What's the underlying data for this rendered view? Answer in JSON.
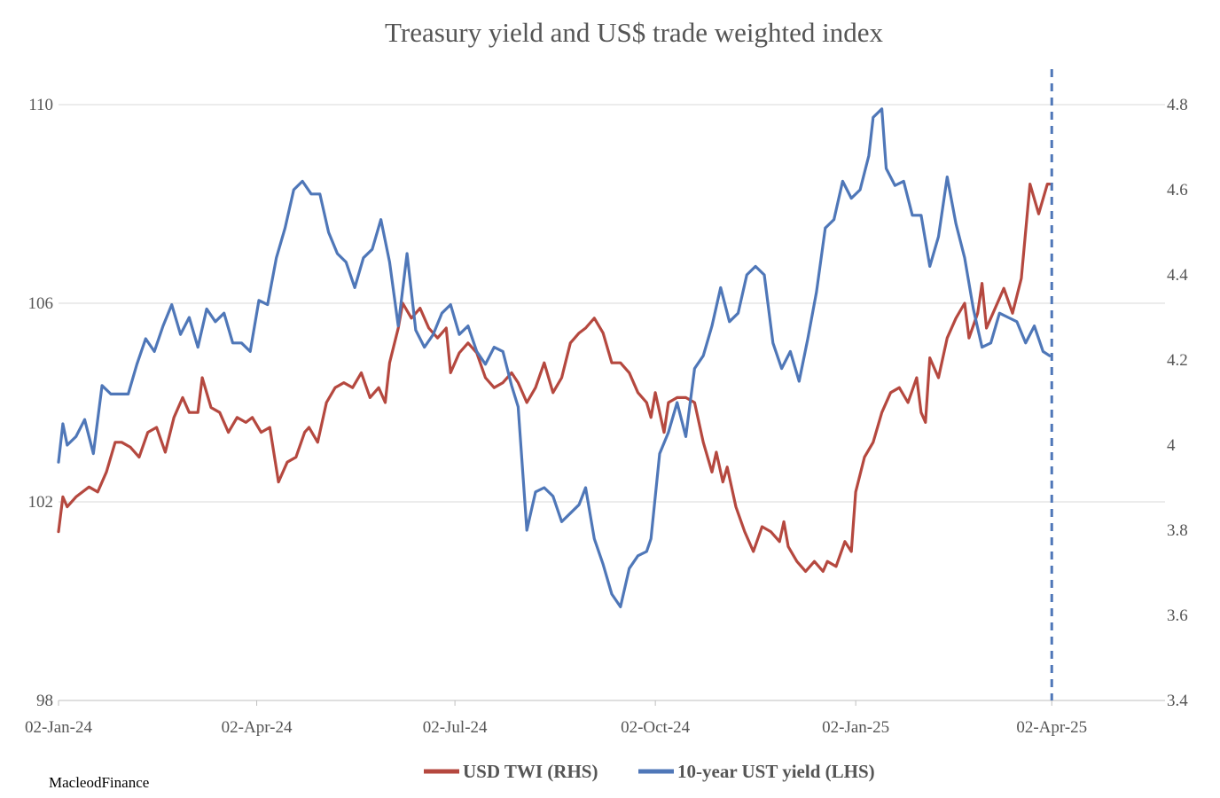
{
  "chart_data": {
    "type": "line",
    "title": "Treasury yield and US$ trade weighted index",
    "x_tick_labels": [
      "02-Jan-24",
      "02-Apr-24",
      "02-Jul-24",
      "02-Oct-24",
      "02-Jan-25",
      "02-Apr-25"
    ],
    "x_range": [
      "2024-01-02",
      "2025-05-24"
    ],
    "left_axis": {
      "ticks": [
        98,
        102,
        106,
        110
      ],
      "range": [
        98,
        110
      ]
    },
    "right_axis": {
      "ticks": [
        3.4,
        3.6,
        3.8,
        4,
        4.2,
        4.4,
        4.6,
        4.8
      ],
      "range": [
        3.4,
        4.8
      ]
    },
    "grid": true,
    "legend_position": "bottom-center",
    "vertical_marker": {
      "date": "2025-04-02",
      "style": "dashed",
      "color": "#4f77b8"
    },
    "series": [
      {
        "name": "USD TWI (RHS)",
        "color": "#b5483f",
        "points": [
          [
            "2024-01-02",
            101.4
          ],
          [
            "2024-01-04",
            102.1
          ],
          [
            "2024-01-06",
            101.9
          ],
          [
            "2024-01-10",
            102.1
          ],
          [
            "2024-01-16",
            102.3
          ],
          [
            "2024-01-20",
            102.2
          ],
          [
            "2024-01-24",
            102.6
          ],
          [
            "2024-01-28",
            103.2
          ],
          [
            "2024-01-31",
            103.2
          ],
          [
            "2024-02-04",
            103.1
          ],
          [
            "2024-02-08",
            102.9
          ],
          [
            "2024-02-12",
            103.4
          ],
          [
            "2024-02-16",
            103.5
          ],
          [
            "2024-02-20",
            103.0
          ],
          [
            "2024-02-24",
            103.7
          ],
          [
            "2024-02-28",
            104.1
          ],
          [
            "2024-03-02",
            103.8
          ],
          [
            "2024-03-06",
            103.8
          ],
          [
            "2024-03-08",
            104.5
          ],
          [
            "2024-03-12",
            103.9
          ],
          [
            "2024-03-16",
            103.8
          ],
          [
            "2024-03-20",
            103.4
          ],
          [
            "2024-03-24",
            103.7
          ],
          [
            "2024-03-28",
            103.6
          ],
          [
            "2024-03-31",
            103.7
          ],
          [
            "2024-04-04",
            103.4
          ],
          [
            "2024-04-08",
            103.5
          ],
          [
            "2024-04-12",
            102.4
          ],
          [
            "2024-04-16",
            102.8
          ],
          [
            "2024-04-20",
            102.9
          ],
          [
            "2024-04-24",
            103.4
          ],
          [
            "2024-04-26",
            103.5
          ],
          [
            "2024-04-30",
            103.2
          ],
          [
            "2024-05-04",
            104.0
          ],
          [
            "2024-05-08",
            104.3
          ],
          [
            "2024-05-12",
            104.4
          ],
          [
            "2024-05-16",
            104.3
          ],
          [
            "2024-05-20",
            104.6
          ],
          [
            "2024-05-24",
            104.1
          ],
          [
            "2024-05-28",
            104.3
          ],
          [
            "2024-05-31",
            104.0
          ],
          [
            "2024-06-02",
            104.8
          ],
          [
            "2024-06-06",
            105.5
          ],
          [
            "2024-06-08",
            106.0
          ],
          [
            "2024-06-12",
            105.7
          ],
          [
            "2024-06-16",
            105.9
          ],
          [
            "2024-06-20",
            105.5
          ],
          [
            "2024-06-24",
            105.3
          ],
          [
            "2024-06-28",
            105.5
          ],
          [
            "2024-06-30",
            104.6
          ],
          [
            "2024-07-04",
            105.0
          ],
          [
            "2024-07-08",
            105.2
          ],
          [
            "2024-07-12",
            105.0
          ],
          [
            "2024-07-16",
            104.5
          ],
          [
            "2024-07-20",
            104.3
          ],
          [
            "2024-07-24",
            104.4
          ],
          [
            "2024-07-28",
            104.6
          ],
          [
            "2024-07-31",
            104.4
          ],
          [
            "2024-08-04",
            104.0
          ],
          [
            "2024-08-08",
            104.3
          ],
          [
            "2024-08-12",
            104.8
          ],
          [
            "2024-08-16",
            104.2
          ],
          [
            "2024-08-20",
            104.5
          ],
          [
            "2024-08-24",
            105.2
          ],
          [
            "2024-08-28",
            105.4
          ],
          [
            "2024-08-31",
            105.5
          ],
          [
            "2024-09-04",
            105.7
          ],
          [
            "2024-09-08",
            105.4
          ],
          [
            "2024-09-12",
            104.8
          ],
          [
            "2024-09-16",
            104.8
          ],
          [
            "2024-09-20",
            104.6
          ],
          [
            "2024-09-24",
            104.2
          ],
          [
            "2024-09-28",
            104.0
          ],
          [
            "2024-09-30",
            103.7
          ],
          [
            "2024-10-02",
            104.2
          ],
          [
            "2024-10-06",
            103.4
          ],
          [
            "2024-10-08",
            104.0
          ],
          [
            "2024-10-12",
            104.1
          ],
          [
            "2024-10-16",
            104.1
          ],
          [
            "2024-10-20",
            104.0
          ],
          [
            "2024-10-24",
            103.2
          ],
          [
            "2024-10-28",
            102.6
          ],
          [
            "2024-10-30",
            103.0
          ],
          [
            "2024-11-02",
            102.4
          ],
          [
            "2024-11-04",
            102.7
          ],
          [
            "2024-11-08",
            101.9
          ],
          [
            "2024-11-12",
            101.4
          ],
          [
            "2024-11-16",
            101.0
          ],
          [
            "2024-11-20",
            101.5
          ],
          [
            "2024-11-24",
            101.4
          ],
          [
            "2024-11-28",
            101.2
          ],
          [
            "2024-11-30",
            101.6
          ],
          [
            "2024-12-02",
            101.1
          ],
          [
            "2024-12-06",
            100.8
          ],
          [
            "2024-12-10",
            100.6
          ],
          [
            "2024-12-14",
            100.8
          ],
          [
            "2024-12-18",
            100.6
          ],
          [
            "2024-12-20",
            100.8
          ],
          [
            "2024-12-24",
            100.7
          ],
          [
            "2024-12-28",
            101.2
          ],
          [
            "2024-12-31",
            101.0
          ],
          [
            "2025-01-02",
            102.2
          ],
          [
            "2025-01-06",
            102.9
          ],
          [
            "2025-01-10",
            103.2
          ],
          [
            "2025-01-14",
            103.8
          ],
          [
            "2025-01-18",
            104.2
          ],
          [
            "2025-01-22",
            104.3
          ],
          [
            "2025-01-26",
            104.0
          ],
          [
            "2025-01-30",
            104.5
          ],
          [
            "2025-02-01",
            103.8
          ],
          [
            "2025-02-03",
            103.6
          ],
          [
            "2025-02-05",
            104.9
          ],
          [
            "2025-02-09",
            104.5
          ],
          [
            "2025-02-13",
            105.3
          ],
          [
            "2025-02-17",
            105.7
          ],
          [
            "2025-02-21",
            106.0
          ],
          [
            "2025-02-23",
            105.3
          ],
          [
            "2025-02-27",
            105.8
          ],
          [
            "2025-03-01",
            106.4
          ],
          [
            "2025-03-03",
            105.5
          ],
          [
            "2025-03-07",
            105.9
          ],
          [
            "2025-03-11",
            106.3
          ],
          [
            "2025-03-15",
            105.8
          ],
          [
            "2025-03-19",
            106.5
          ],
          [
            "2025-03-23",
            108.4
          ],
          [
            "2025-03-27",
            107.8
          ],
          [
            "2025-03-31",
            108.4
          ],
          [
            "2025-04-01",
            108.4
          ]
        ]
      },
      {
        "name": "10-year UST yield (LHS)",
        "color": "#4f77b8",
        "points": [
          [
            "2024-01-02",
            3.96
          ],
          [
            "2024-01-04",
            4.05
          ],
          [
            "2024-01-06",
            4.0
          ],
          [
            "2024-01-10",
            4.02
          ],
          [
            "2024-01-14",
            4.06
          ],
          [
            "2024-01-18",
            3.98
          ],
          [
            "2024-01-22",
            4.14
          ],
          [
            "2024-01-26",
            4.12
          ],
          [
            "2024-01-30",
            4.12
          ],
          [
            "2024-02-03",
            4.12
          ],
          [
            "2024-02-07",
            4.19
          ],
          [
            "2024-02-11",
            4.25
          ],
          [
            "2024-02-15",
            4.22
          ],
          [
            "2024-02-19",
            4.28
          ],
          [
            "2024-02-23",
            4.33
          ],
          [
            "2024-02-27",
            4.26
          ],
          [
            "2024-03-02",
            4.3
          ],
          [
            "2024-03-06",
            4.23
          ],
          [
            "2024-03-10",
            4.32
          ],
          [
            "2024-03-14",
            4.29
          ],
          [
            "2024-03-18",
            4.31
          ],
          [
            "2024-03-22",
            4.24
          ],
          [
            "2024-03-26",
            4.24
          ],
          [
            "2024-03-30",
            4.22
          ],
          [
            "2024-04-03",
            4.34
          ],
          [
            "2024-04-07",
            4.33
          ],
          [
            "2024-04-11",
            4.44
          ],
          [
            "2024-04-15",
            4.51
          ],
          [
            "2024-04-19",
            4.6
          ],
          [
            "2024-04-23",
            4.62
          ],
          [
            "2024-04-27",
            4.59
          ],
          [
            "2024-05-01",
            4.59
          ],
          [
            "2024-05-05",
            4.5
          ],
          [
            "2024-05-09",
            4.45
          ],
          [
            "2024-05-13",
            4.43
          ],
          [
            "2024-05-17",
            4.37
          ],
          [
            "2024-05-21",
            4.44
          ],
          [
            "2024-05-25",
            4.46
          ],
          [
            "2024-05-29",
            4.53
          ],
          [
            "2024-06-02",
            4.43
          ],
          [
            "2024-06-06",
            4.28
          ],
          [
            "2024-06-10",
            4.45
          ],
          [
            "2024-06-14",
            4.27
          ],
          [
            "2024-06-18",
            4.23
          ],
          [
            "2024-06-22",
            4.26
          ],
          [
            "2024-06-26",
            4.31
          ],
          [
            "2024-06-30",
            4.33
          ],
          [
            "2024-07-04",
            4.26
          ],
          [
            "2024-07-08",
            4.28
          ],
          [
            "2024-07-12",
            4.22
          ],
          [
            "2024-07-16",
            4.19
          ],
          [
            "2024-07-20",
            4.23
          ],
          [
            "2024-07-24",
            4.22
          ],
          [
            "2024-07-28",
            4.14
          ],
          [
            "2024-07-31",
            4.09
          ],
          [
            "2024-08-04",
            3.8
          ],
          [
            "2024-08-08",
            3.89
          ],
          [
            "2024-08-12",
            3.9
          ],
          [
            "2024-08-16",
            3.88
          ],
          [
            "2024-08-20",
            3.82
          ],
          [
            "2024-08-24",
            3.84
          ],
          [
            "2024-08-28",
            3.86
          ],
          [
            "2024-08-31",
            3.9
          ],
          [
            "2024-09-04",
            3.78
          ],
          [
            "2024-09-08",
            3.72
          ],
          [
            "2024-09-12",
            3.65
          ],
          [
            "2024-09-16",
            3.62
          ],
          [
            "2024-09-20",
            3.71
          ],
          [
            "2024-09-24",
            3.74
          ],
          [
            "2024-09-28",
            3.75
          ],
          [
            "2024-09-30",
            3.78
          ],
          [
            "2024-10-04",
            3.98
          ],
          [
            "2024-10-08",
            4.03
          ],
          [
            "2024-10-12",
            4.1
          ],
          [
            "2024-10-16",
            4.02
          ],
          [
            "2024-10-20",
            4.18
          ],
          [
            "2024-10-24",
            4.21
          ],
          [
            "2024-10-28",
            4.28
          ],
          [
            "2024-11-01",
            4.37
          ],
          [
            "2024-11-05",
            4.29
          ],
          [
            "2024-11-09",
            4.31
          ],
          [
            "2024-11-13",
            4.4
          ],
          [
            "2024-11-17",
            4.42
          ],
          [
            "2024-11-21",
            4.4
          ],
          [
            "2024-11-25",
            4.24
          ],
          [
            "2024-11-29",
            4.18
          ],
          [
            "2024-12-03",
            4.22
          ],
          [
            "2024-12-07",
            4.15
          ],
          [
            "2024-12-11",
            4.25
          ],
          [
            "2024-12-15",
            4.36
          ],
          [
            "2024-12-19",
            4.51
          ],
          [
            "2024-12-23",
            4.53
          ],
          [
            "2024-12-27",
            4.62
          ],
          [
            "2024-12-31",
            4.58
          ],
          [
            "2025-01-04",
            4.6
          ],
          [
            "2025-01-08",
            4.68
          ],
          [
            "2025-01-10",
            4.77
          ],
          [
            "2025-01-14",
            4.79
          ],
          [
            "2025-01-16",
            4.65
          ],
          [
            "2025-01-20",
            4.61
          ],
          [
            "2025-01-24",
            4.62
          ],
          [
            "2025-01-28",
            4.54
          ],
          [
            "2025-02-01",
            4.54
          ],
          [
            "2025-02-05",
            4.42
          ],
          [
            "2025-02-09",
            4.49
          ],
          [
            "2025-02-13",
            4.63
          ],
          [
            "2025-02-17",
            4.52
          ],
          [
            "2025-02-21",
            4.44
          ],
          [
            "2025-02-25",
            4.32
          ],
          [
            "2025-03-01",
            4.23
          ],
          [
            "2025-03-05",
            4.24
          ],
          [
            "2025-03-09",
            4.31
          ],
          [
            "2025-03-13",
            4.3
          ],
          [
            "2025-03-17",
            4.29
          ],
          [
            "2025-03-21",
            4.24
          ],
          [
            "2025-03-25",
            4.28
          ],
          [
            "2025-03-29",
            4.22
          ],
          [
            "2025-04-01",
            4.21
          ]
        ]
      }
    ]
  },
  "legend": [
    {
      "label": "USD TWI (RHS)",
      "color": "#b5483f"
    },
    {
      "label": "10-year UST yield (LHS)",
      "color": "#4f77b8"
    }
  ],
  "credit": "MacleodFinance"
}
